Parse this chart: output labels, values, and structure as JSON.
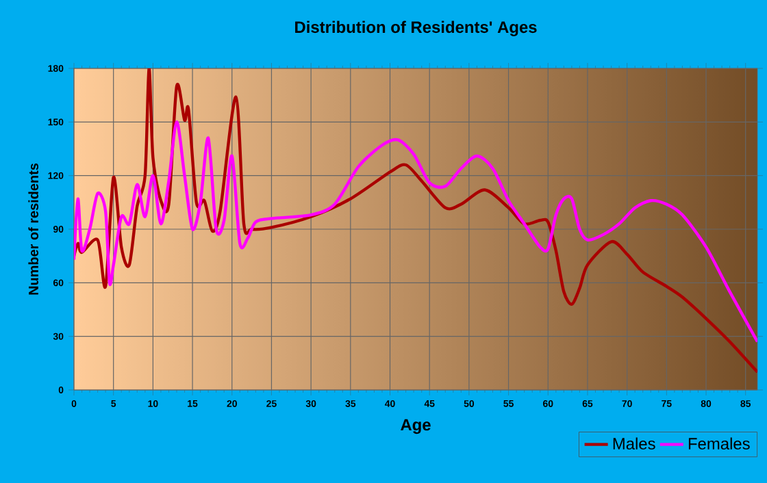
{
  "chart_data": {
    "type": "line",
    "title": "Distribution of Residents' Ages",
    "xlabel": "Age",
    "ylabel": "Number of residents",
    "xlim": [
      0,
      86.5
    ],
    "xticks": [
      0,
      5,
      10,
      15,
      20,
      25,
      30,
      35,
      40,
      45,
      50,
      55,
      60,
      65,
      70,
      75,
      80,
      85
    ],
    "ylim": [
      0,
      180
    ],
    "yticks": [
      0,
      30,
      60,
      90,
      120,
      150,
      180
    ],
    "grid": true,
    "legend": "bottom right",
    "marker": "none",
    "line_style": "solid",
    "series": [
      {
        "name": "Males",
        "color": "#aa0000",
        "x": [
          0,
          0.5,
          1,
          3,
          4,
          5,
          6,
          7,
          8,
          9,
          9.5,
          10,
          11,
          12,
          13,
          14,
          14.5,
          15.5,
          16.5,
          17.5,
          18.5,
          20.5,
          21.5,
          22.5,
          25,
          30,
          35,
          40,
          42,
          44,
          47,
          49,
          52,
          55,
          57,
          59,
          60,
          61,
          62,
          63,
          64,
          65,
          68,
          70,
          72,
          75,
          77,
          80,
          83,
          86.5
        ],
        "values": [
          75,
          82,
          77,
          84,
          58,
          119,
          80,
          70,
          103,
          120,
          180,
          130,
          106,
          104,
          170,
          151,
          157,
          105,
          106,
          89,
          100,
          164,
          93,
          90,
          91,
          97,
          107,
          122,
          126,
          117,
          102,
          104,
          112,
          102,
          93,
          95,
          94,
          78,
          55,
          48,
          57,
          70,
          83,
          76,
          66,
          58,
          52,
          40,
          27,
          10
        ]
      },
      {
        "name": "Females",
        "color": "#ff00ff",
        "x": [
          0,
          0.5,
          1,
          2,
          3,
          4,
          4.5,
          5,
          6,
          7,
          8,
          9,
          10,
          11,
          12,
          13,
          14,
          15,
          16,
          17,
          18,
          19,
          20,
          21,
          22,
          23,
          25,
          30,
          33,
          36,
          39,
          41,
          43,
          45,
          47,
          49,
          51,
          53,
          55,
          57,
          59,
          60,
          61,
          62,
          63,
          64,
          65,
          67,
          69,
          71,
          73,
          75,
          77,
          80,
          83,
          86.5
        ],
        "values": [
          73,
          107,
          78,
          90,
          110,
          100,
          60,
          70,
          97,
          93,
          115,
          97,
          120,
          93,
          117,
          150,
          120,
          90,
          105,
          141,
          90,
          95,
          131,
          82,
          85,
          94,
          96,
          98,
          104,
          125,
          137,
          140,
          132,
          116,
          114,
          124,
          131,
          124,
          106,
          93,
          80,
          79,
          98,
          107,
          107,
          90,
          84,
          87,
          93,
          102,
          106,
          104,
          98,
          80,
          55,
          27
        ]
      }
    ]
  }
}
